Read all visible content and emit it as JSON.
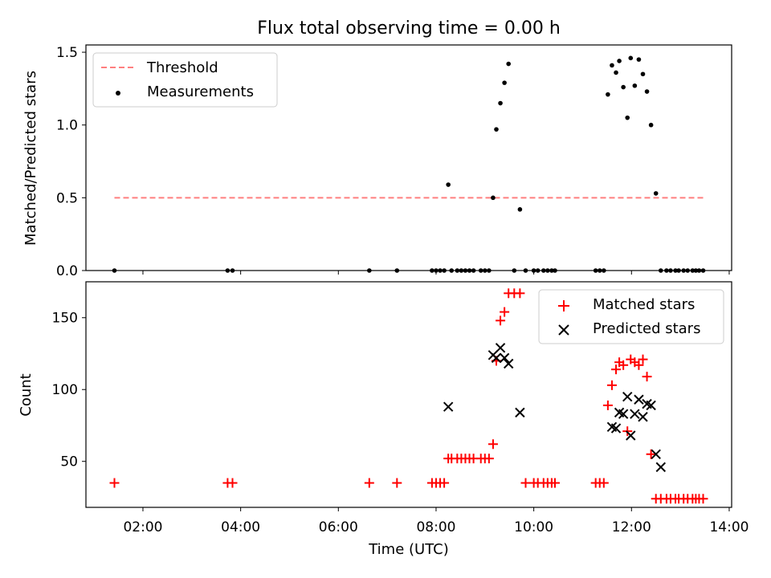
{
  "chart_data": [
    {
      "type": "scatter",
      "title": "Flux total observing time = 0.00 h",
      "xlabel": "",
      "ylabel": "Matched/Predicted stars",
      "xlim": [
        "00:50",
        "14:03"
      ],
      "ylim": [
        0,
        1.55
      ],
      "yticks": [
        0.0,
        0.5,
        1.0,
        1.5
      ],
      "ytick_labels": [
        "0.0",
        "0.5",
        "1.0",
        "1.5"
      ],
      "legend_position": "top-left",
      "grid": false,
      "series": [
        {
          "name": "Threshold",
          "kind": "line",
          "style": "dashed",
          "color": "#ff7f7f",
          "x": [
            "01:25",
            "13:30"
          ],
          "y": [
            0.5,
            0.5
          ]
        },
        {
          "name": "Measurements",
          "kind": "scatter",
          "marker": "dot",
          "color": "#000000",
          "x": [
            "01:25",
            "03:44",
            "03:50",
            "06:38",
            "07:12",
            "07:55",
            "08:00",
            "08:05",
            "08:10",
            "08:15",
            "08:19",
            "08:26",
            "08:31",
            "08:36",
            "08:41",
            "08:46",
            "08:55",
            "09:00",
            "09:05",
            "09:10",
            "09:14",
            "09:19",
            "09:24",
            "09:29",
            "09:36",
            "09:43",
            "09:50",
            "10:00",
            "10:05",
            "10:12",
            "10:17",
            "10:22",
            "10:26",
            "11:16",
            "11:21",
            "11:26",
            "11:31",
            "11:36",
            "11:41",
            "11:45",
            "11:50",
            "11:55",
            "11:59",
            "12:04",
            "12:09",
            "12:14",
            "12:19",
            "12:24",
            "12:30",
            "12:36",
            "12:43",
            "12:48",
            "12:54",
            "12:58",
            "13:04",
            "13:09",
            "13:15",
            "13:19",
            "13:23",
            "13:28"
          ],
          "y": [
            0,
            0,
            0,
            0,
            0,
            0,
            0,
            0,
            0,
            0.59,
            0,
            0,
            0,
            0,
            0,
            0,
            0,
            0,
            0,
            0.5,
            0.97,
            1.15,
            1.29,
            1.42,
            0,
            0.42,
            0,
            0,
            0,
            0,
            0,
            0,
            0,
            0,
            0,
            0,
            1.21,
            1.41,
            1.36,
            1.44,
            1.26,
            1.05,
            1.46,
            1.27,
            1.45,
            1.35,
            1.23,
            1.0,
            0.53,
            0,
            0,
            0,
            0,
            0,
            0,
            0,
            0,
            0,
            0,
            0
          ]
        }
      ]
    },
    {
      "type": "scatter",
      "title": "",
      "xlabel": "Time (UTC)",
      "ylabel": "Count",
      "xlim": [
        "00:50",
        "14:03"
      ],
      "xticks": [
        "02:00",
        "04:00",
        "06:00",
        "08:00",
        "10:00",
        "12:00",
        "14:00"
      ],
      "ylim": [
        18,
        175
      ],
      "yticks": [
        50,
        100,
        150
      ],
      "ytick_labels": [
        "50",
        "100",
        "150"
      ],
      "legend_position": "top-right",
      "grid": false,
      "series": [
        {
          "name": "Matched stars",
          "kind": "scatter",
          "marker": "plus",
          "color": "#ff0000",
          "x": [
            "01:25",
            "03:44",
            "03:50",
            "06:38",
            "07:12",
            "07:55",
            "08:00",
            "08:05",
            "08:10",
            "08:15",
            "08:19",
            "08:26",
            "08:31",
            "08:36",
            "08:41",
            "08:46",
            "08:55",
            "09:00",
            "09:05",
            "09:10",
            "09:14",
            "09:19",
            "09:24",
            "09:29",
            "09:36",
            "09:43",
            "09:50",
            "10:00",
            "10:05",
            "10:12",
            "10:17",
            "10:22",
            "10:26",
            "11:16",
            "11:21",
            "11:26",
            "11:31",
            "11:36",
            "11:41",
            "11:45",
            "11:50",
            "11:55",
            "11:59",
            "12:04",
            "12:09",
            "12:14",
            "12:19",
            "12:24",
            "12:30",
            "12:36",
            "12:43",
            "12:48",
            "12:54",
            "12:58",
            "13:04",
            "13:09",
            "13:15",
            "13:19",
            "13:23",
            "13:28"
          ],
          "y": [
            35,
            35,
            35,
            35,
            35,
            35,
            35,
            35,
            35,
            52,
            52,
            52,
            52,
            52,
            52,
            52,
            52,
            52,
            52,
            62,
            120,
            148,
            154,
            167,
            167,
            167,
            35,
            35,
            35,
            35,
            35,
            35,
            35,
            35,
            35,
            35,
            89,
            103,
            114,
            119,
            117,
            71,
            121,
            119,
            117,
            121,
            109,
            55,
            24,
            24,
            24,
            24,
            24,
            24,
            24,
            24,
            24,
            24,
            24,
            24
          ]
        },
        {
          "name": "Predicted stars",
          "kind": "scatter",
          "marker": "x",
          "color": "#000000",
          "x": [
            "08:15",
            "09:10",
            "09:14",
            "09:19",
            "09:24",
            "09:29",
            "09:43",
            "11:36",
            "11:41",
            "11:45",
            "11:50",
            "11:55",
            "11:59",
            "12:04",
            "12:09",
            "12:14",
            "12:19",
            "12:24",
            "12:30",
            "12:36"
          ],
          "y": [
            88,
            124,
            122,
            129,
            122,
            118,
            84,
            74,
            73,
            84,
            83,
            95,
            68,
            83,
            93,
            81,
            90,
            89,
            55,
            46
          ]
        }
      ]
    }
  ]
}
